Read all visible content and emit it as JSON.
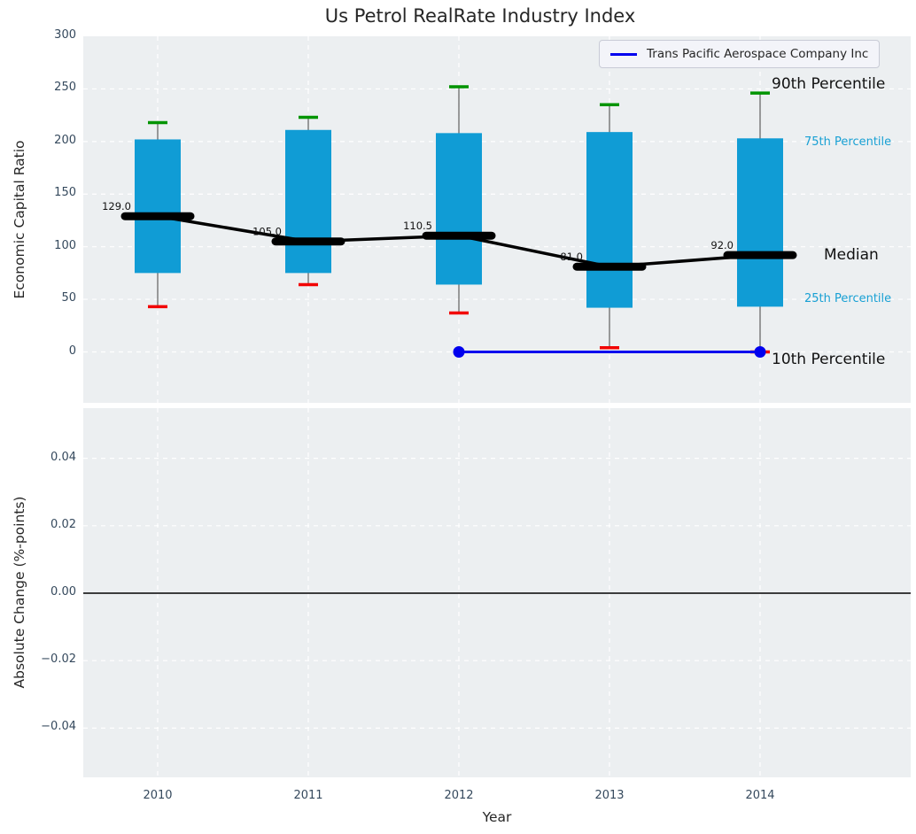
{
  "title": "Us Petrol RealRate Industry Index",
  "legend": {
    "series_label": "Trans Pacific Aerospace Company Inc"
  },
  "annotations": {
    "p90": "90th Percentile",
    "p75": "75th Percentile",
    "median": "Median",
    "p25": "25th Percentile",
    "p10": "10th Percentile"
  },
  "top_axis": {
    "ylabel": "Economic Capital Ratio",
    "ytick_labels": [
      "300",
      "250",
      "200",
      "150",
      "100",
      "50",
      "0"
    ],
    "ytick_values": [
      300,
      250,
      200,
      150,
      100,
      50,
      0
    ]
  },
  "bottom_axis": {
    "ylabel": "Absolute Change (%-points)",
    "ytick_labels": [
      "0.04",
      "0.02",
      "0.00",
      "−0.02",
      "−0.04"
    ],
    "ytick_values": [
      0.04,
      0.02,
      0.0,
      -0.02,
      -0.04
    ],
    "zero_line": 0.0
  },
  "xaxis": {
    "label": "Year",
    "tick_labels": [
      "2010",
      "2011",
      "2012",
      "2013",
      "2014"
    ],
    "tick_values": [
      2010,
      2011,
      2012,
      2013,
      2014
    ]
  },
  "colors": {
    "plot_background": "#eceff1",
    "grid": "#ffffff",
    "box_fill": "#109cd5",
    "whisker": "#5f5f5f",
    "cap_high": "#009400",
    "cap_low": "#f20000",
    "median": "#000000",
    "series": "#0000ee",
    "zero_line": "#000000",
    "tick_text": "#35495d",
    "cyan_label": "#18a0d4"
  },
  "chart_data": [
    {
      "type": "boxplot+line",
      "panel": "top",
      "title": "Us Petrol RealRate Industry Index",
      "xlabel": "Year",
      "ylabel": "Economic Capital Ratio",
      "categories": [
        2010,
        2011,
        2012,
        2013,
        2014
      ],
      "boxes": [
        {
          "year": 2010,
          "p90": 218,
          "p75": 202,
          "median": 129.0,
          "p25": 75,
          "p10": 43
        },
        {
          "year": 2011,
          "p90": 223,
          "p75": 211,
          "median": 105.0,
          "p25": 75,
          "p10": 64
        },
        {
          "year": 2012,
          "p90": 252,
          "p75": 208,
          "median": 110.5,
          "p25": 64,
          "p10": 37
        },
        {
          "year": 2013,
          "p90": 235,
          "p75": 209,
          "median": 81.0,
          "p25": 42,
          "p10": 4
        },
        {
          "year": 2014,
          "p90": 246,
          "p75": 203,
          "median": 92.0,
          "p25": 43,
          "p10": 0
        }
      ],
      "median_labels": [
        "129.0",
        "105.0",
        "110.5",
        "81.0",
        "92.0"
      ],
      "series": [
        {
          "name": "Trans Pacific Aerospace Company Inc",
          "x": [
            2012,
            2014
          ],
          "y": [
            0,
            0
          ],
          "marker": "circle"
        }
      ],
      "ylim": [
        -48,
        300
      ],
      "yticks": [
        0,
        50,
        100,
        150,
        200,
        250,
        300
      ],
      "grid": "white dashed",
      "legend_position": "upper right"
    },
    {
      "type": "line",
      "panel": "bottom",
      "ylabel": "Absolute Change (%-points)",
      "categories": [
        2010,
        2011,
        2012,
        2013,
        2014
      ],
      "series": [],
      "zero_line": 0.0,
      "ylim": [
        -0.055,
        0.055
      ],
      "yticks": [
        0.04,
        0.02,
        0.0,
        -0.02,
        -0.04
      ],
      "grid": "white dashed"
    }
  ]
}
